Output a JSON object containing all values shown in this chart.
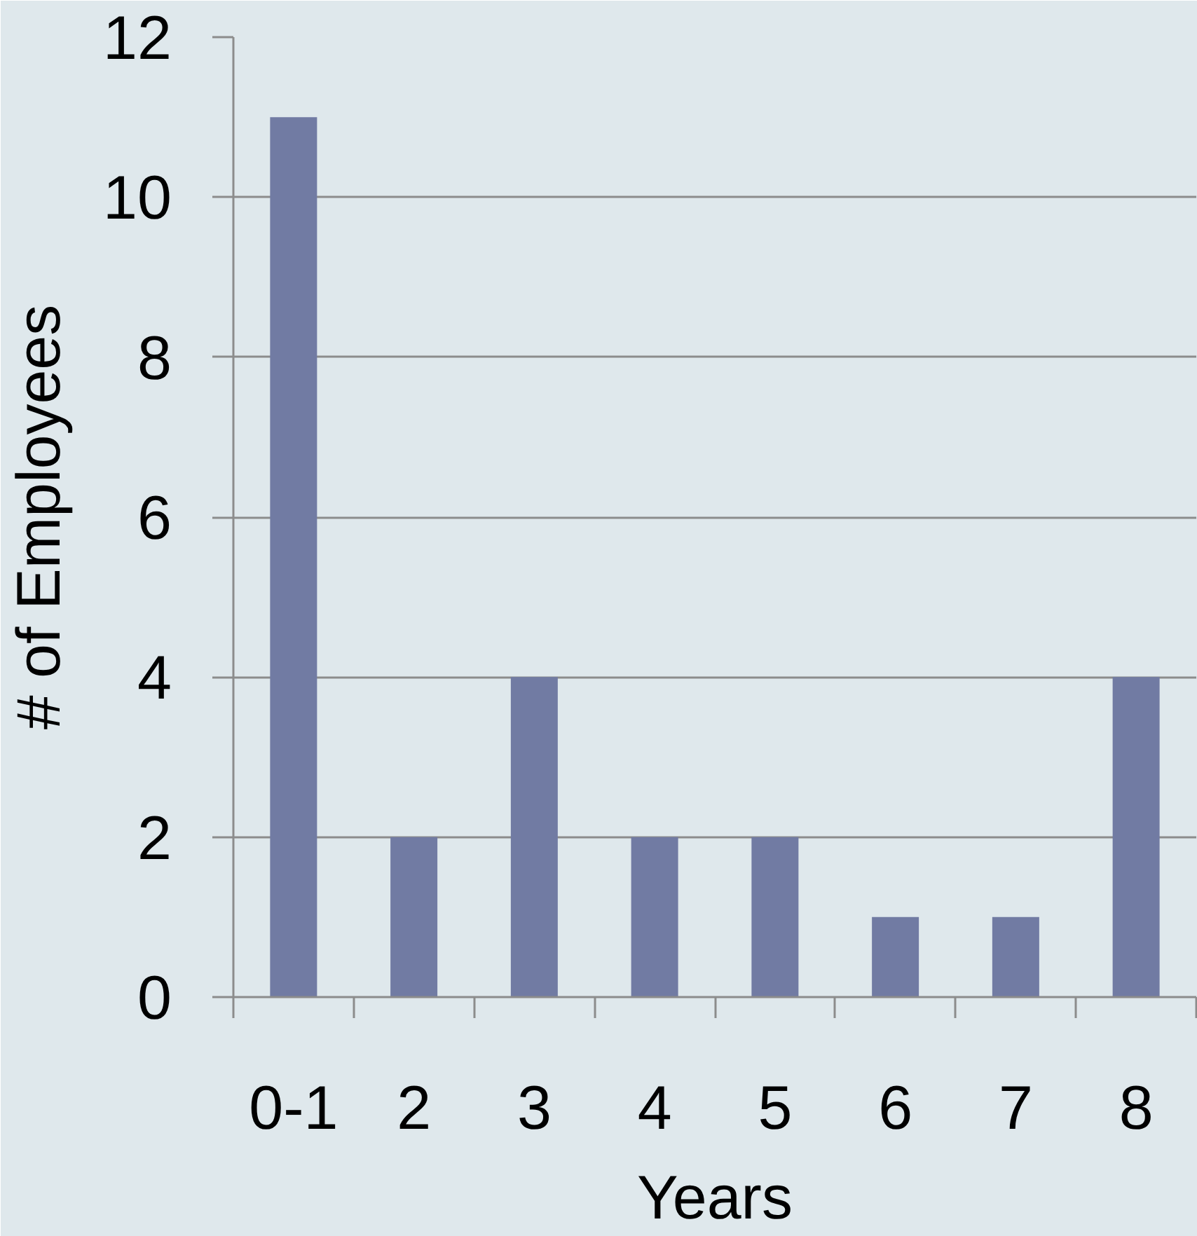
{
  "chart_data": {
    "type": "bar",
    "xlabel": "Years",
    "ylabel": "# of Employees",
    "categories": [
      "0-1",
      "2",
      "3",
      "4",
      "5",
      "6",
      "7",
      "8"
    ],
    "values": [
      11,
      2,
      4,
      2,
      2,
      1,
      1,
      4
    ],
    "color": "#717ba3",
    "ylim": [
      0,
      12
    ],
    "yticks": [
      0,
      2,
      4,
      6,
      8,
      10,
      12
    ],
    "grid": "y"
  }
}
